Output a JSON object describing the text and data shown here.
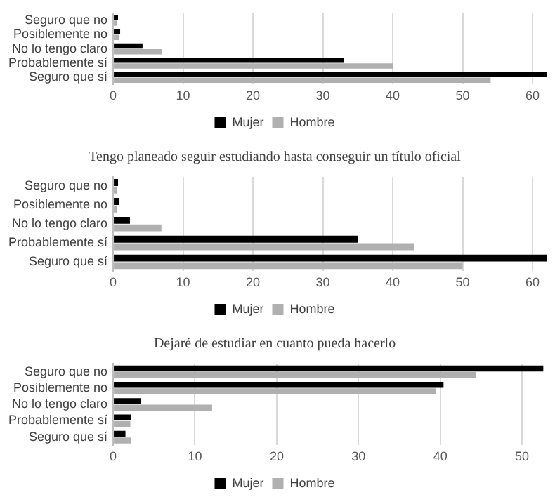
{
  "chart_data": [
    {
      "type": "bar",
      "orientation": "horizontal",
      "categories": [
        "Seguro que no",
        "Posiblemente no",
        "No lo tengo claro",
        "Probablemente sí",
        "Seguro que sí"
      ],
      "series": [
        {
          "name": "Mujer",
          "color": "#000000",
          "values": [
            0.7,
            1,
            4.2,
            33,
            62
          ]
        },
        {
          "name": "Hombre",
          "color": "#b0b0b0",
          "values": [
            0.6,
            0.8,
            7,
            40,
            54
          ]
        }
      ],
      "xlim": [
        0,
        62
      ],
      "xticks": [
        0,
        10,
        20,
        30,
        40,
        50,
        60
      ],
      "grid": "x",
      "legend": "bottom"
    },
    {
      "type": "bar",
      "orientation": "horizontal",
      "title": "Tengo planeado seguir estudiando hasta conseguir un título oficial",
      "categories": [
        "Seguro que no",
        "Posiblemente no",
        "No lo tengo claro",
        "Probablemente sí",
        "Seguro que sí"
      ],
      "series": [
        {
          "name": "Mujer",
          "color": "#000000",
          "values": [
            0.7,
            0.9,
            2.4,
            35,
            62
          ]
        },
        {
          "name": "Hombre",
          "color": "#b0b0b0",
          "values": [
            0.5,
            0.6,
            6.9,
            43,
            50
          ]
        }
      ],
      "xlim": [
        0,
        62
      ],
      "xticks": [
        0,
        10,
        20,
        30,
        40,
        50,
        60
      ],
      "grid": "x",
      "legend": "bottom"
    },
    {
      "type": "bar",
      "orientation": "horizontal",
      "title": "Dejaré de estudiar en cuanto pueda hacerlo",
      "categories": [
        "Seguro que no",
        "Posiblemente no",
        "No lo tengo claro",
        "Probablemente sí",
        "Seguro que sí"
      ],
      "series": [
        {
          "name": "Mujer",
          "color": "#000000",
          "values": [
            52.6,
            40.4,
            3.4,
            2.2,
            1.5
          ]
        },
        {
          "name": "Hombre",
          "color": "#b0b0b0",
          "values": [
            44.4,
            39.5,
            12.1,
            2.1,
            2.2
          ]
        }
      ],
      "xlim": [
        0,
        53
      ],
      "xticks": [
        0,
        10,
        20,
        30,
        40,
        50
      ],
      "grid": "x",
      "legend": "bottom"
    }
  ]
}
